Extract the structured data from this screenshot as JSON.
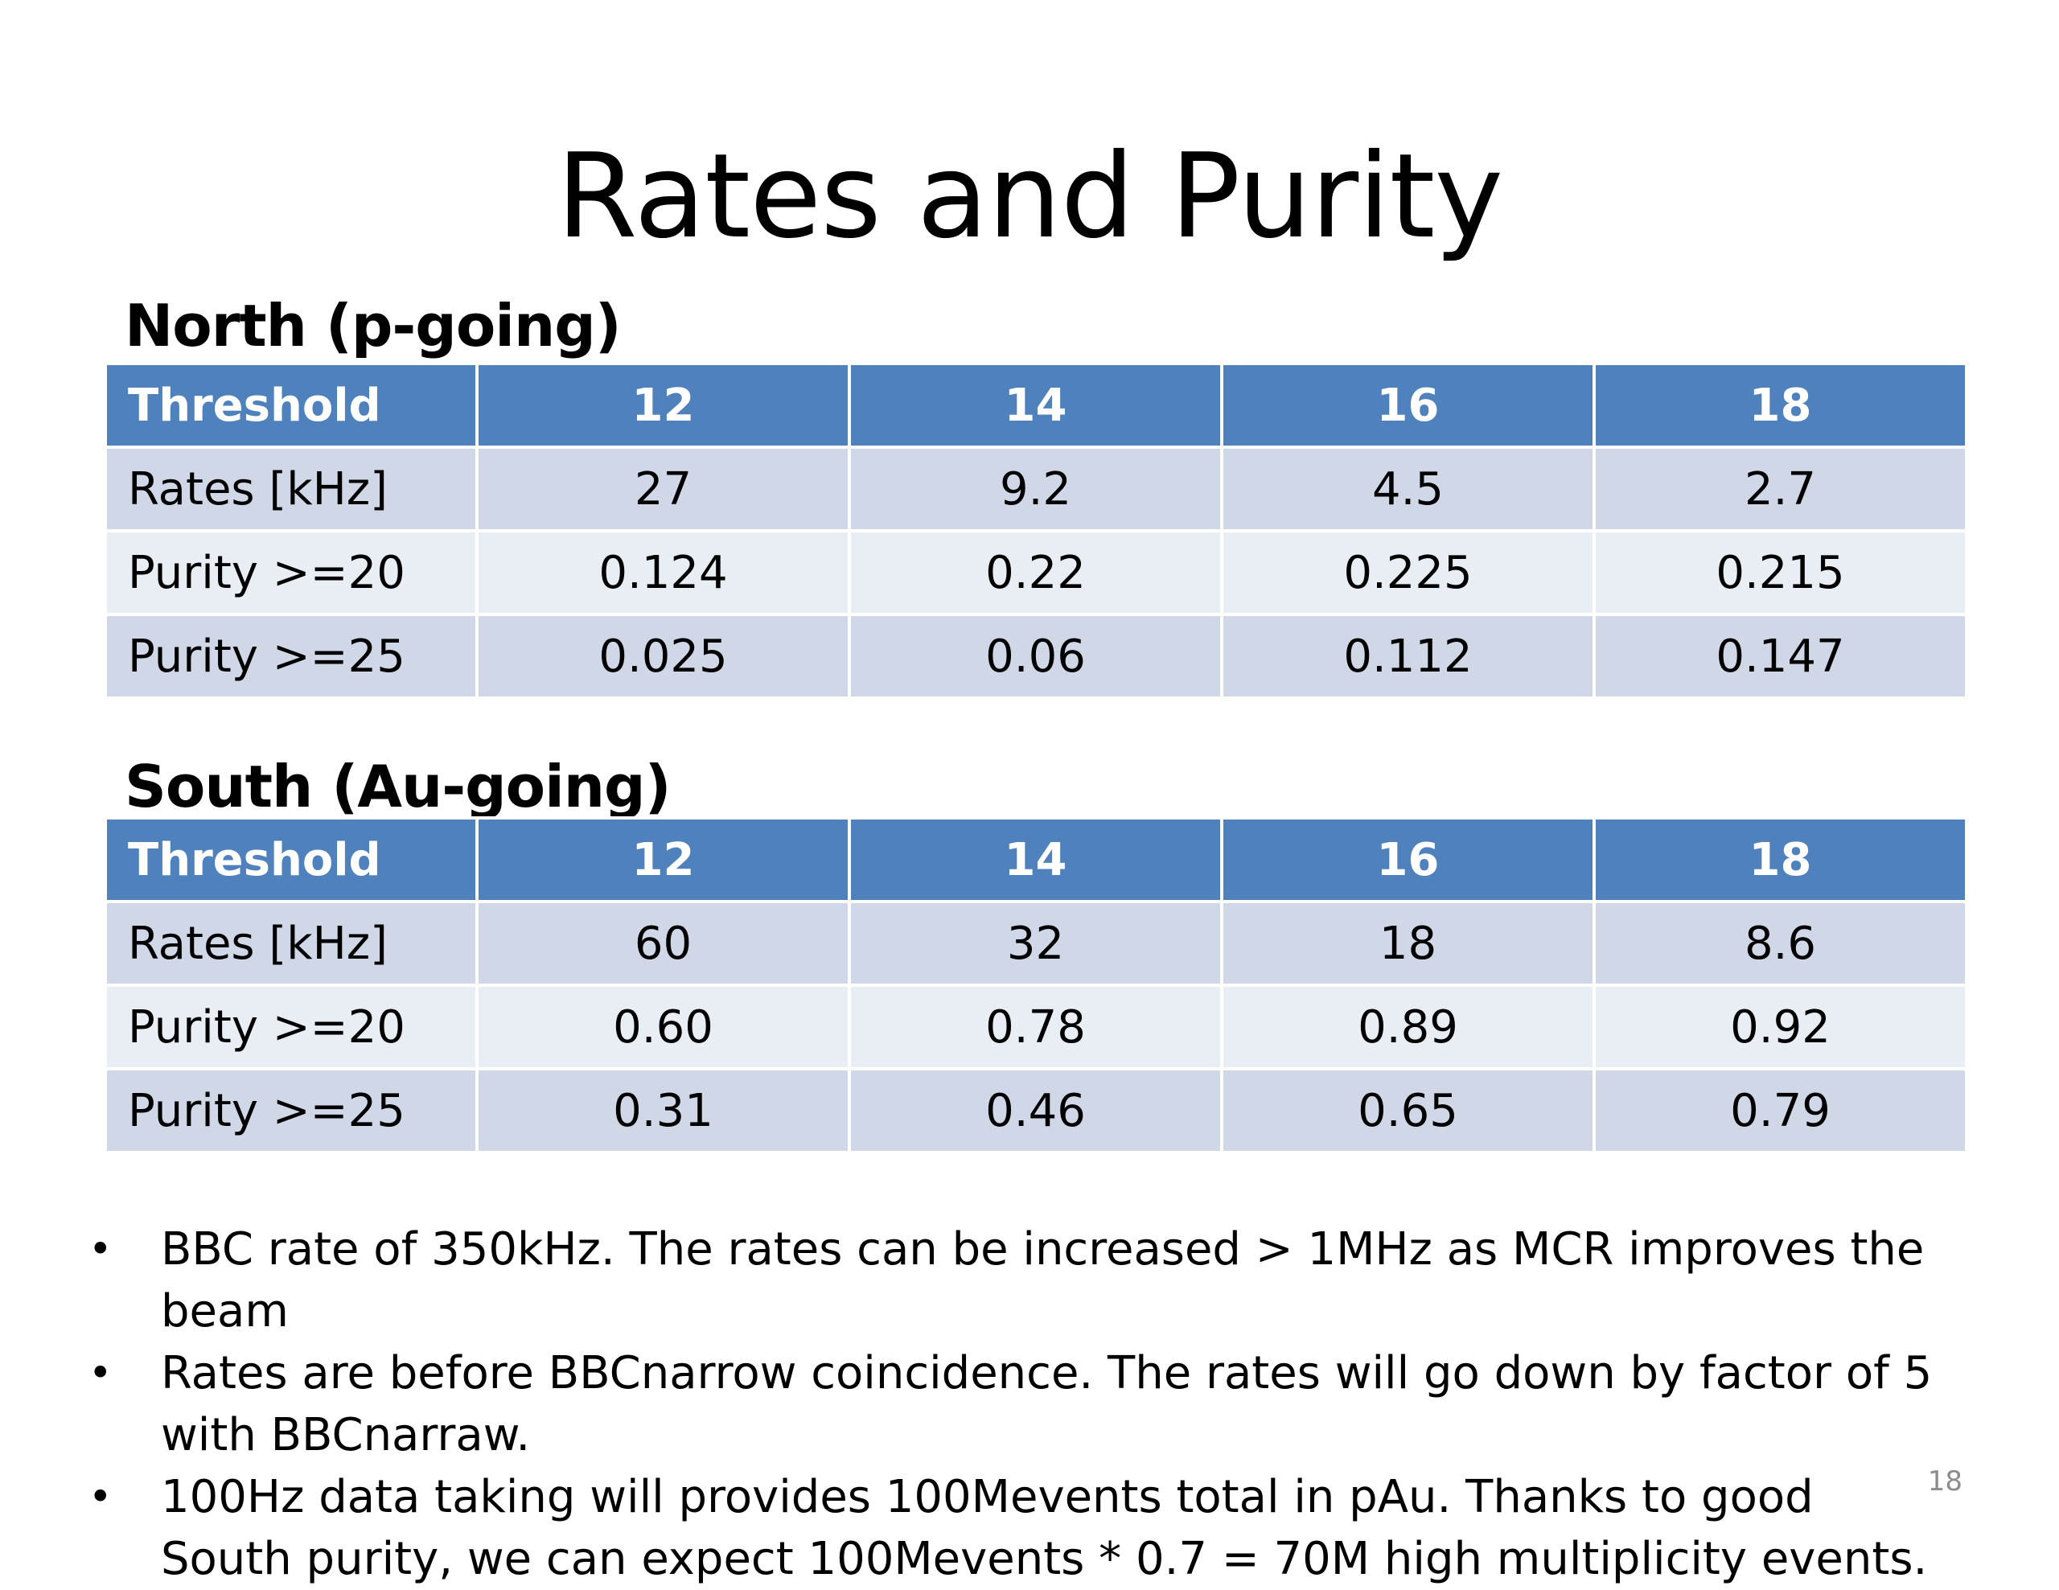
{
  "slide": {
    "title": "Rates and Purity",
    "page_number": "18"
  },
  "north": {
    "title": "North (p-going)",
    "headers": [
      "Threshold",
      "12",
      "14",
      "16",
      "18"
    ],
    "rows": [
      [
        "Rates [kHz]",
        "27",
        "9.2",
        "4.5",
        "2.7"
      ],
      [
        "Purity >=20",
        "0.124",
        "0.22",
        "0.225",
        "0.215"
      ],
      [
        "Purity >=25",
        "0.025",
        "0.06",
        "0.112",
        "0.147"
      ]
    ]
  },
  "south": {
    "title": "South (Au-going)",
    "headers": [
      "Threshold",
      "12",
      "14",
      "16",
      "18"
    ],
    "rows": [
      [
        "Rates [kHz]",
        "60",
        "32",
        "18",
        "8.6"
      ],
      [
        "Purity >=20",
        "0.60",
        "0.78",
        "0.89",
        "0.92"
      ],
      [
        "Purity >=25",
        "0.31",
        "0.46",
        "0.65",
        "0.79"
      ]
    ]
  },
  "notes": {
    "bullet": "•",
    "items": [
      "BBC rate of 350kHz. The rates can be increased > 1MHz as MCR improves the beam",
      "Rates are before BBCnarrow coincidence. The rates will go down by factor of 5 with BBCnarraw.",
      "100Hz data taking will provides 100Mevents total in pAu. Thanks to good South purity,  we can expect 100Mevents * 0.7 = 70M high multiplicity events."
    ]
  },
  "colors": {
    "header_fill": "#4f81bd",
    "row_dark": "#d0d8e8",
    "row_light": "#e9edf4",
    "page_number": "#8c8c8c"
  }
}
